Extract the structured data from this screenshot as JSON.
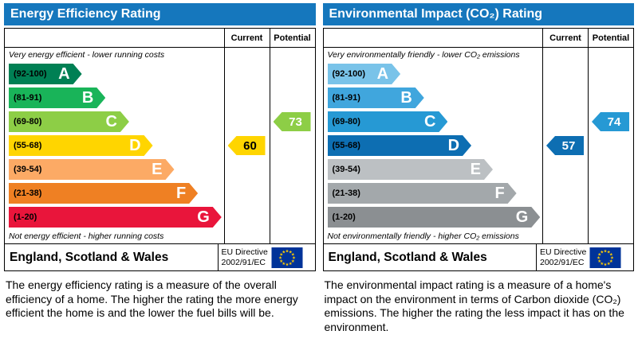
{
  "panels": [
    {
      "id": "energy-efficiency",
      "title": "Energy Efficiency Rating",
      "header_bg": "#1577bd",
      "columns": {
        "current": "Current",
        "potential": "Potential"
      },
      "caption_top": "Very energy efficient - lower running costs",
      "caption_bottom": "Not energy efficient - higher running costs",
      "bands": [
        {
          "range": "(92-100)",
          "letter": "A",
          "color": "#008054",
          "width_pct": 34
        },
        {
          "range": "(81-91)",
          "letter": "B",
          "color": "#19b459",
          "width_pct": 45
        },
        {
          "range": "(69-80)",
          "letter": "C",
          "color": "#8dce46",
          "width_pct": 56
        },
        {
          "range": "(55-68)",
          "letter": "D",
          "color": "#ffd500",
          "width_pct": 67
        },
        {
          "range": "(39-54)",
          "letter": "E",
          "color": "#fcaa65",
          "width_pct": 77
        },
        {
          "range": "(21-38)",
          "letter": "F",
          "color": "#ef8023",
          "width_pct": 88
        },
        {
          "range": "(1-20)",
          "letter": "G",
          "color": "#e9153b",
          "width_pct": 99
        }
      ],
      "current": {
        "value": 60,
        "band": "D",
        "color": "#ffd500",
        "text_color": "#000000"
      },
      "potential": {
        "value": 73,
        "band": "C",
        "color": "#8dce46",
        "text_color": "#ffffff"
      },
      "footer": {
        "region": "England, Scotland & Wales",
        "directive_line1": "EU Directive",
        "directive_line2": "2002/91/EC"
      },
      "description": "The energy efficiency rating is a measure of the overall efficiency of a home. The higher the rating the more energy efficient the home is and the lower the fuel bills will be."
    },
    {
      "id": "environmental-impact",
      "title": "Environmental Impact (CO₂) Rating",
      "header_bg": "#1577bd",
      "columns": {
        "current": "Current",
        "potential": "Potential"
      },
      "caption_top": "Very environmentally friendly - lower CO₂ emissions",
      "caption_bottom": "Not environmentally friendly - higher CO₂ emissions",
      "bands": [
        {
          "range": "(92-100)",
          "letter": "A",
          "color": "#79c3e9",
          "width_pct": 34
        },
        {
          "range": "(81-91)",
          "letter": "B",
          "color": "#40a6dd",
          "width_pct": 45
        },
        {
          "range": "(69-80)",
          "letter": "C",
          "color": "#2699d4",
          "width_pct": 56
        },
        {
          "range": "(55-68)",
          "letter": "D",
          "color": "#0d6eb2",
          "width_pct": 67
        },
        {
          "range": "(39-54)",
          "letter": "E",
          "color": "#bcc0c3",
          "width_pct": 77
        },
        {
          "range": "(21-38)",
          "letter": "F",
          "color": "#a3a8ab",
          "width_pct": 88
        },
        {
          "range": "(1-20)",
          "letter": "G",
          "color": "#8b8f92",
          "width_pct": 99
        }
      ],
      "current": {
        "value": 57,
        "band": "D",
        "color": "#0d6eb2",
        "text_color": "#ffffff"
      },
      "potential": {
        "value": 74,
        "band": "C",
        "color": "#2699d4",
        "text_color": "#ffffff"
      },
      "footer": {
        "region": "England, Scotland & Wales",
        "directive_line1": "EU Directive",
        "directive_line2": "2002/91/EC"
      },
      "description": "The environmental impact rating is a measure of a home's impact on the environment in terms of Carbon dioxide (CO₂) emissions. The higher the rating the less impact it has on the environment."
    }
  ],
  "chart_data": [
    {
      "type": "bar",
      "title": "Energy Efficiency Rating",
      "categories": [
        "A (92-100)",
        "B (81-91)",
        "C (69-80)",
        "D (55-68)",
        "E (39-54)",
        "F (21-38)",
        "G (1-20)"
      ],
      "series": [
        {
          "name": "Current",
          "values": [
            60
          ],
          "band": "D"
        },
        {
          "name": "Potential",
          "values": [
            73
          ],
          "band": "C"
        }
      ],
      "ylim": [
        1,
        100
      ],
      "notes": "Current rating 60 falls in band D; potential rating 73 falls in band C"
    },
    {
      "type": "bar",
      "title": "Environmental Impact (CO₂) Rating",
      "categories": [
        "A (92-100)",
        "B (81-91)",
        "C (69-80)",
        "D (55-68)",
        "E (39-54)",
        "F (21-38)",
        "G (1-20)"
      ],
      "series": [
        {
          "name": "Current",
          "values": [
            57
          ],
          "band": "D"
        },
        {
          "name": "Potential",
          "values": [
            74
          ],
          "band": "C"
        }
      ],
      "ylim": [
        1,
        100
      ],
      "notes": "Current rating 57 falls in band D; potential rating 74 falls in band C"
    }
  ]
}
